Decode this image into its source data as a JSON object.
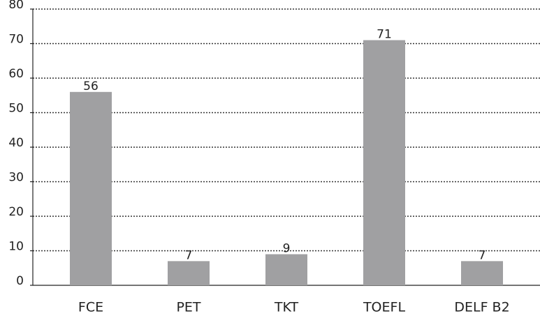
{
  "chart_data": {
    "type": "bar",
    "categories": [
      "FCE",
      "PET",
      "TKT",
      "TOEFL",
      "DELF B2"
    ],
    "values": [
      56,
      7,
      9,
      71,
      7
    ],
    "color": "#a0a0a2",
    "ylim": [
      0,
      80
    ],
    "yticks": [
      0,
      10,
      20,
      30,
      40,
      50,
      60,
      70,
      80
    ],
    "grid": true
  }
}
